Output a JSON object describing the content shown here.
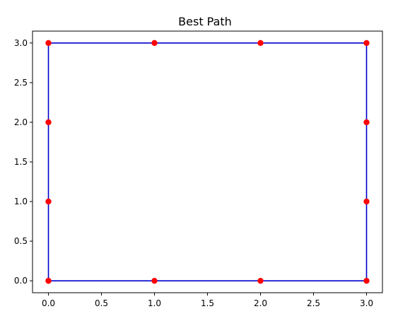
{
  "chart_data": {
    "type": "line",
    "title": "Best Path",
    "xlabel": "",
    "ylabel": "",
    "xlim": [
      -0.15,
      3.15
    ],
    "ylim": [
      -0.15,
      3.15
    ],
    "grid": false,
    "x_ticks": [
      "0.0",
      "0.5",
      "1.0",
      "1.5",
      "2.0",
      "2.5",
      "3.0"
    ],
    "y_ticks": [
      "0.0",
      "0.5",
      "1.0",
      "1.5",
      "2.0",
      "2.5",
      "3.0"
    ],
    "colors": {
      "line": "#0000cc",
      "points": "#ff0000"
    },
    "points": [
      {
        "x": 0,
        "y": 0
      },
      {
        "x": 0,
        "y": 1
      },
      {
        "x": 0,
        "y": 2
      },
      {
        "x": 0,
        "y": 3
      },
      {
        "x": 1,
        "y": 3
      },
      {
        "x": 2,
        "y": 3
      },
      {
        "x": 3,
        "y": 3
      },
      {
        "x": 3,
        "y": 2
      },
      {
        "x": 3,
        "y": 1
      },
      {
        "x": 3,
        "y": 0
      },
      {
        "x": 2,
        "y": 0
      },
      {
        "x": 1,
        "y": 0
      },
      {
        "x": 0,
        "y": 0
      }
    ]
  }
}
